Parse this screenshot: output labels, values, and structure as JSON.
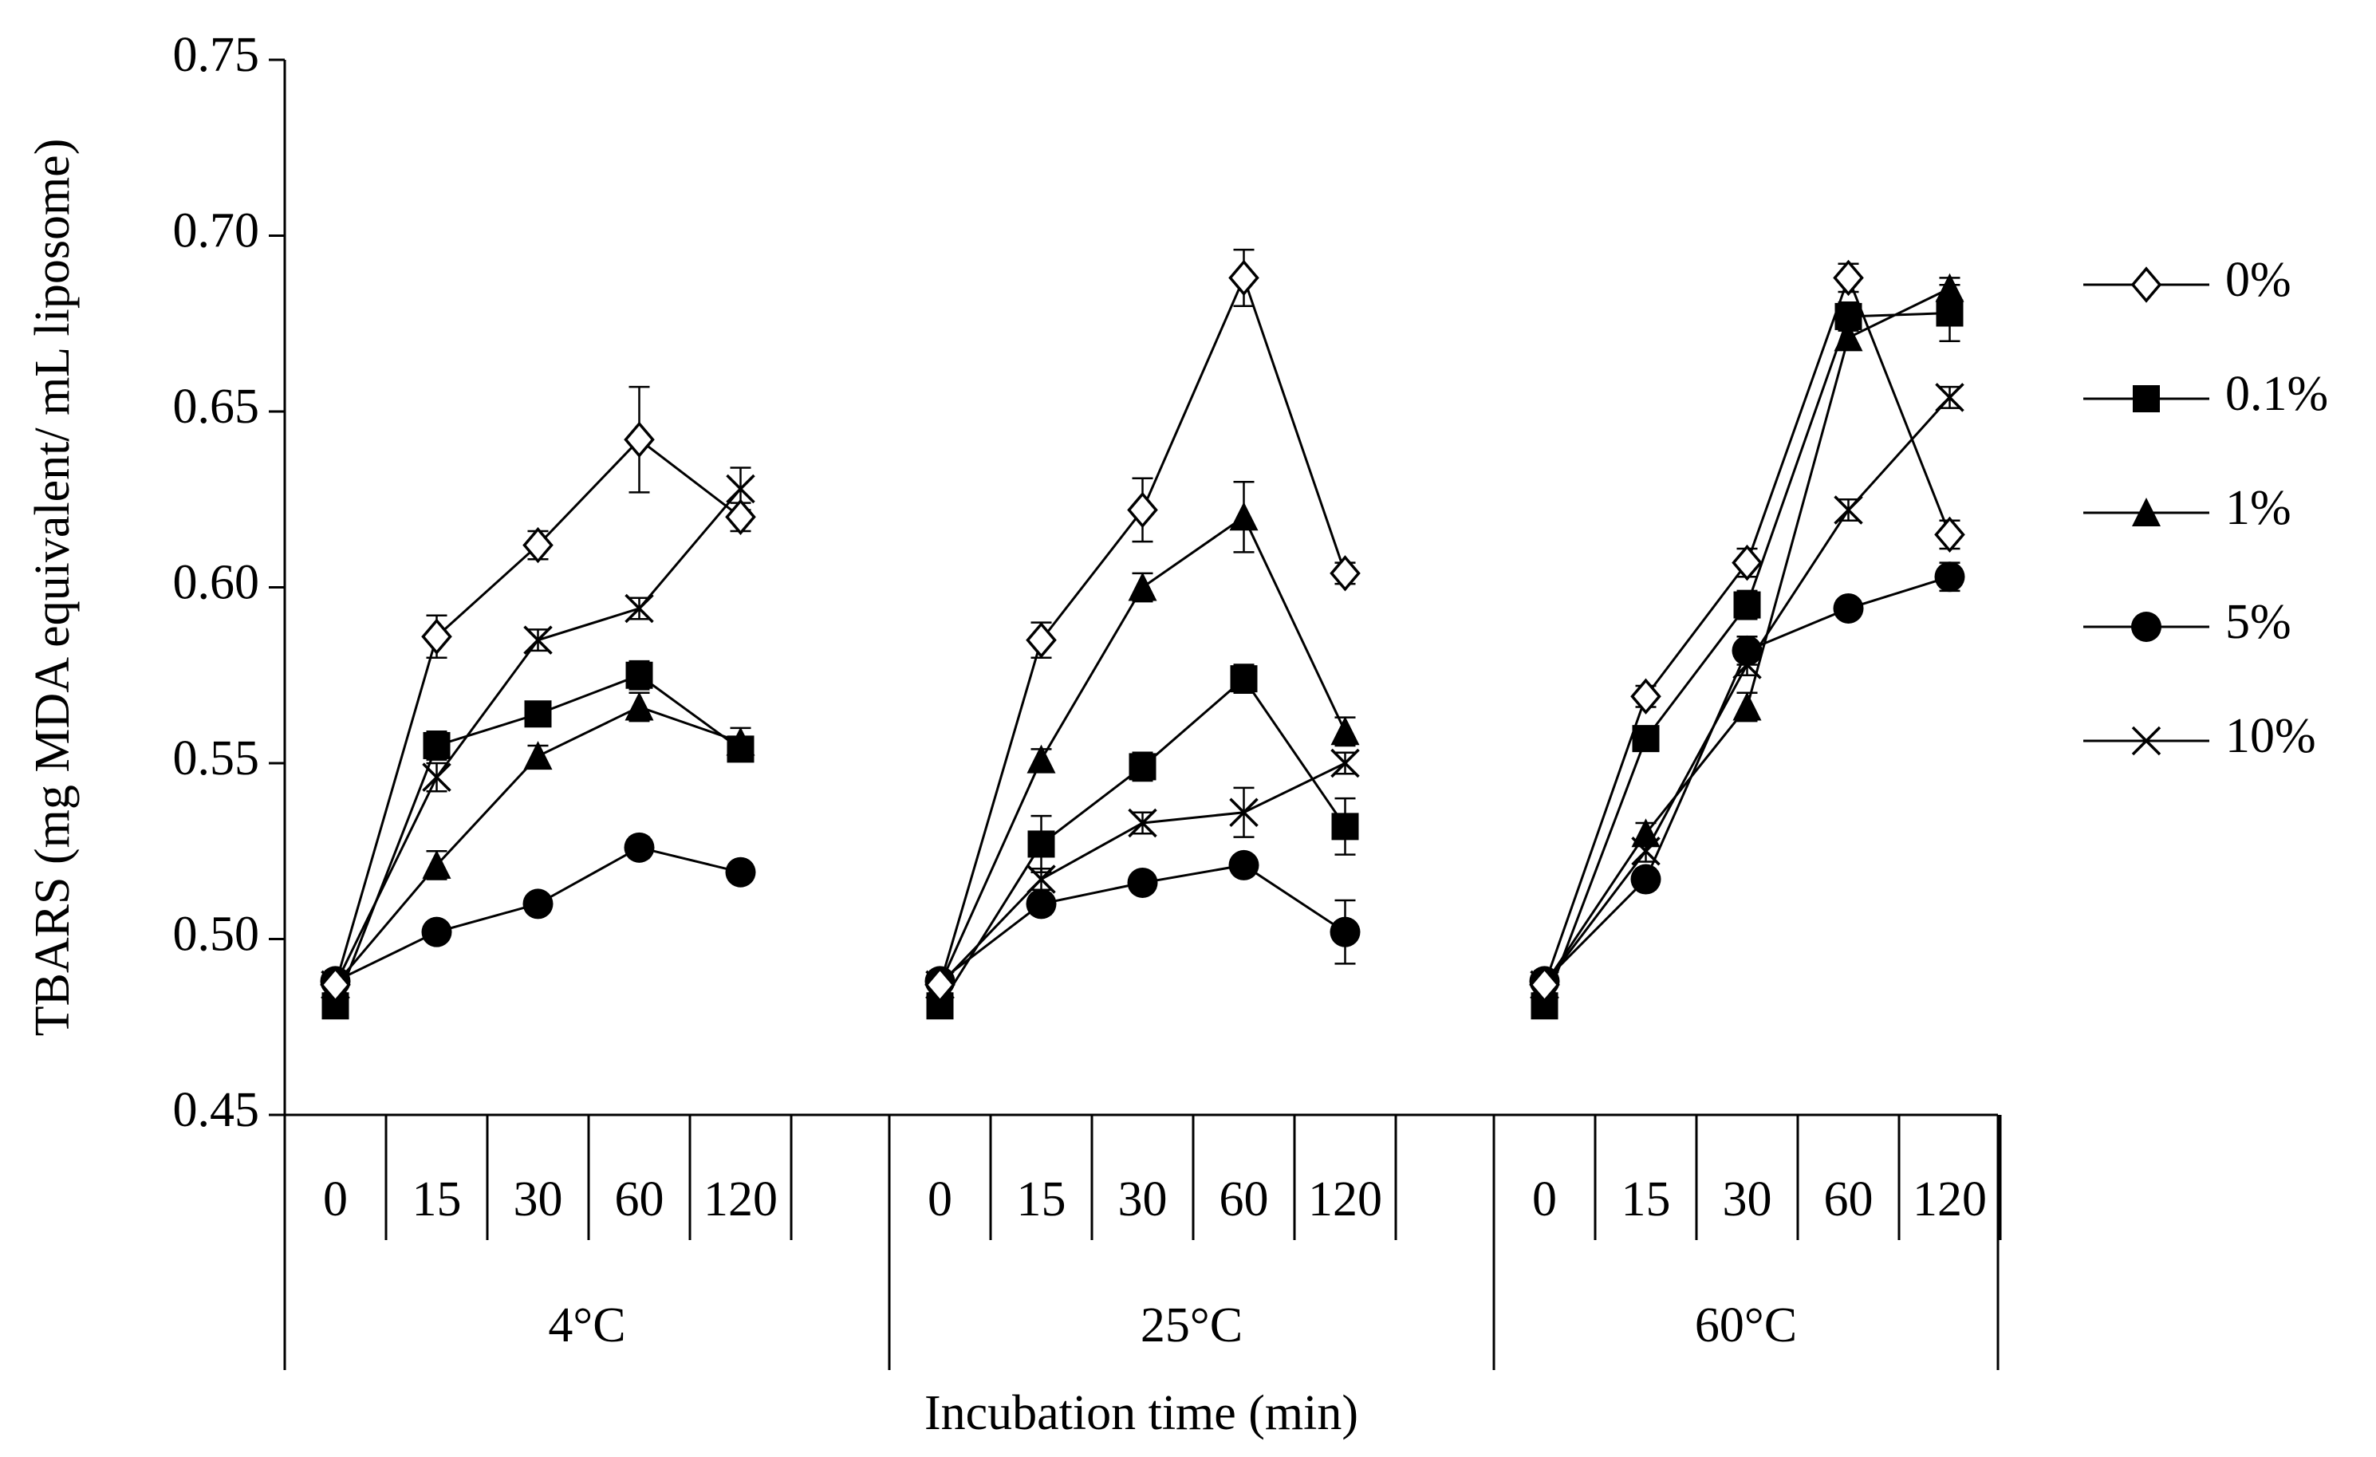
{
  "chart_data": {
    "type": "line",
    "title": "",
    "ylabel": "TBARS (mg MDA equivalent/ mL liposome)",
    "xlabel": "Incubation time (min)",
    "ylim": [
      0.45,
      0.75
    ],
    "yticks": [
      0.45,
      0.5,
      0.55,
      0.6,
      0.65,
      0.7,
      0.75
    ],
    "ytick_labels": [
      "0.45",
      "0.50",
      "0.55",
      "0.60",
      "0.65",
      "0.70",
      "0.75"
    ],
    "grid": false,
    "legend_position": "right",
    "time_points": [
      "0",
      "15",
      "30",
      "60",
      "120"
    ],
    "groups": [
      "4°C",
      "25°C",
      "60°C"
    ],
    "series": [
      {
        "name": "0%",
        "marker": "diamond-open",
        "values": [
          [
            0.487,
            0.586,
            0.612,
            0.642,
            0.62
          ],
          [
            0.487,
            0.585,
            0.622,
            0.688,
            0.604
          ],
          [
            0.487,
            0.569,
            0.607,
            0.688,
            0.615
          ]
        ],
        "errors": [
          [
            0.004,
            0.006,
            0.004,
            0.015,
            0.004
          ],
          [
            0.004,
            0.005,
            0.009,
            0.008,
            0.003
          ],
          [
            0.004,
            0.003,
            0.004,
            0.004,
            0.004
          ]
        ]
      },
      {
        "name": "0.1%",
        "marker": "square",
        "values": [
          [
            0.481,
            0.555,
            0.564,
            0.575,
            0.554
          ],
          [
            0.481,
            0.527,
            0.549,
            0.574,
            0.532
          ],
          [
            0.481,
            0.557,
            0.595,
            0.677,
            0.678
          ]
        ],
        "errors": [
          [
            0.003,
            0.004,
            0.003,
            0.004,
            0.003
          ],
          [
            0.003,
            0.008,
            0.004,
            0.004,
            0.008
          ],
          [
            0.003,
            0.003,
            0.004,
            0.004,
            0.008
          ]
        ]
      },
      {
        "name": "1%",
        "marker": "triangle",
        "values": [
          [
            0.487,
            0.521,
            0.552,
            0.566,
            0.556
          ],
          [
            0.487,
            0.551,
            0.6,
            0.62,
            0.559
          ],
          [
            0.487,
            0.53,
            0.566,
            0.671,
            0.685
          ]
        ],
        "errors": [
          [
            0.003,
            0.004,
            0.003,
            0.004,
            0.004
          ],
          [
            0.003,
            0.003,
            0.004,
            0.01,
            0.004
          ],
          [
            0.003,
            0.003,
            0.004,
            0.003,
            0.003
          ]
        ]
      },
      {
        "name": "5%",
        "marker": "circle",
        "values": [
          [
            0.488,
            0.502,
            0.51,
            0.526,
            0.519
          ],
          [
            0.488,
            0.51,
            0.516,
            0.521,
            0.502
          ],
          [
            0.488,
            0.517,
            0.582,
            0.594,
            0.603
          ]
        ],
        "errors": [
          [
            0.003,
            0.002,
            0.002,
            0.003,
            0.002
          ],
          [
            0.003,
            0.003,
            0.002,
            0.002,
            0.009
          ],
          [
            0.003,
            0.003,
            0.004,
            0.002,
            0.004
          ]
        ]
      },
      {
        "name": "10%",
        "marker": "x",
        "values": [
          [
            0.487,
            0.546,
            0.585,
            0.594,
            0.628
          ],
          [
            0.487,
            0.517,
            0.533,
            0.536,
            0.55
          ],
          [
            0.487,
            0.525,
            0.578,
            0.622,
            0.654
          ]
        ],
        "errors": [
          [
            0.003,
            0.004,
            0.003,
            0.003,
            0.006
          ],
          [
            0.003,
            0.003,
            0.003,
            0.007,
            0.003
          ],
          [
            0.003,
            0.003,
            0.003,
            0.003,
            0.003
          ]
        ]
      }
    ]
  }
}
